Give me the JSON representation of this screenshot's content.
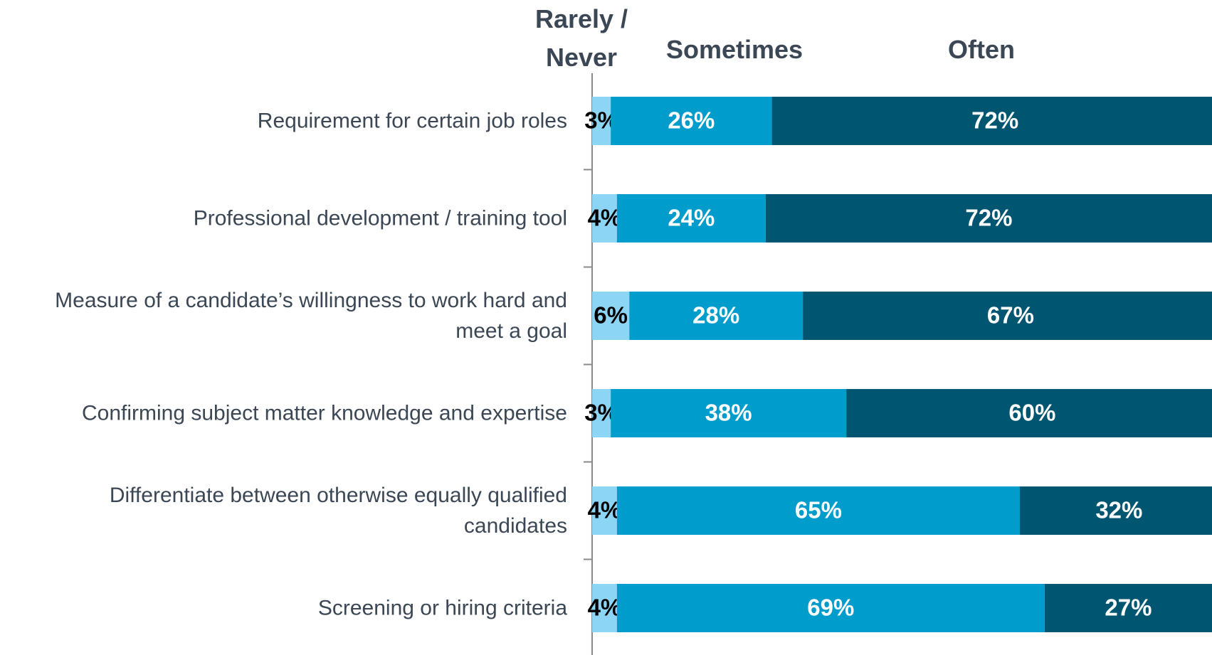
{
  "chart_data": {
    "type": "stacked-bar-horizontal",
    "categories": [
      "Requirement for certain job roles",
      "Professional development / training tool",
      "Measure of a candidate’s willingness to work hard and meet a goal",
      "Confirming subject matter knowledge and expertise",
      "Differentiate between otherwise equally qualified candidates",
      "Screening or hiring criteria"
    ],
    "series": [
      {
        "name": "Rarely / Never",
        "color": "#8dd5f5",
        "label_color": "#000000",
        "values": [
          3,
          4,
          6,
          3,
          4,
          4
        ],
        "value_labels": [
          "3%",
          "4%",
          "6%",
          "3%",
          "4%",
          "4%"
        ]
      },
      {
        "name": "Sometimes",
        "color": "#009ccc",
        "label_color": "#ffffff",
        "values": [
          26,
          24,
          28,
          38,
          65,
          69
        ],
        "value_labels": [
          "26%",
          "24%",
          "28%",
          "38%",
          "65%",
          "69%"
        ]
      },
      {
        "name": "Often",
        "color": "#005670",
        "label_color": "#ffffff",
        "values": [
          72,
          72,
          67,
          60,
          32,
          27
        ],
        "value_labels": [
          "72%",
          "72%",
          "67%",
          "60%",
          "32%",
          "27%"
        ]
      }
    ],
    "xlim": [
      0,
      100
    ]
  }
}
